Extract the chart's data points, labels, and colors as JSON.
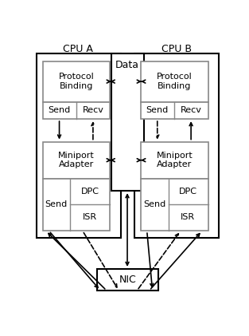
{
  "background": "#ffffff",
  "cpu_a_label": "CPU A",
  "cpu_b_label": "CPU B",
  "data_label": "Data",
  "nic_label": "NIC",
  "protocol_binding_label": "Protocol\nBinding",
  "send_label": "Send",
  "recv_label": "Recv",
  "miniport_adapter_label": "Miniport\nAdapter",
  "dpc_label": "DPC",
  "isr_label": "ISR",
  "text_color": "#000000",
  "fontsize": 9,
  "small_fontsize": 8
}
